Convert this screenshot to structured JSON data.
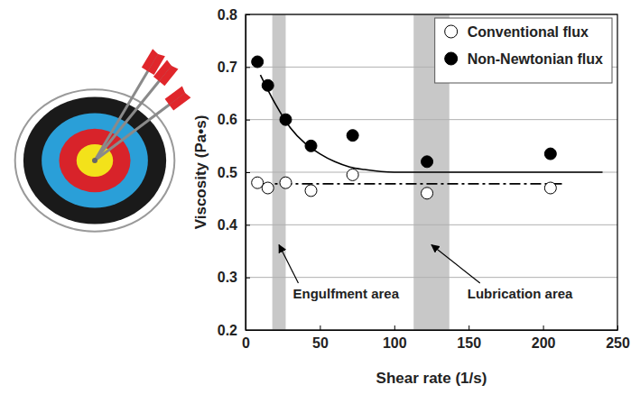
{
  "chart_data": {
    "type": "scatter",
    "x_label": "Shear rate (1/s)",
    "y_label": "Viscosity (Pa•s)",
    "xlim": [
      0,
      250
    ],
    "ylim": [
      0.2,
      0.8
    ],
    "xticks": [
      0,
      50,
      100,
      150,
      200,
      250
    ],
    "yticks": [
      0.2,
      0.3,
      0.4,
      0.5,
      0.6,
      0.7,
      0.8
    ],
    "grid": true,
    "legend": "upper right",
    "series": [
      {
        "name": "Conventional flux",
        "type": "scatter",
        "marker": "open-circle",
        "color": "#000000",
        "x": [
          8,
          15,
          27,
          44,
          72,
          122,
          205
        ],
        "values": [
          0.48,
          0.47,
          0.48,
          0.465,
          0.495,
          0.46,
          0.47
        ]
      },
      {
        "name": "Non-Newtonian flux",
        "type": "scatter",
        "marker": "filled-circle",
        "color": "#000000",
        "x": [
          8,
          15,
          27,
          44,
          72,
          122,
          205
        ],
        "values": [
          0.71,
          0.665,
          0.6,
          0.55,
          0.57,
          0.52,
          0.535
        ]
      },
      {
        "type": "line",
        "line_style": "dashdot",
        "color": "#000000",
        "x": [
          10,
          215
        ],
        "values": [
          0.478,
          0.478
        ]
      },
      {
        "type": "line",
        "line_style": "solid",
        "color": "#000000",
        "x": [
          10,
          20,
          30,
          40,
          50,
          60,
          70,
          80,
          100,
          150,
          200,
          240
        ],
        "values": [
          0.685,
          0.63,
          0.585,
          0.555,
          0.535,
          0.52,
          0.51,
          0.505,
          0.5,
          0.5,
          0.5,
          0.5
        ]
      }
    ],
    "bands": [
      {
        "label": "Engulfment area",
        "range": [
          18,
          27
        ],
        "color": "#c8c8c8"
      },
      {
        "label": "Lubrication area",
        "range": [
          113,
          137
        ],
        "color": "#c8c8c8"
      }
    ]
  }
}
